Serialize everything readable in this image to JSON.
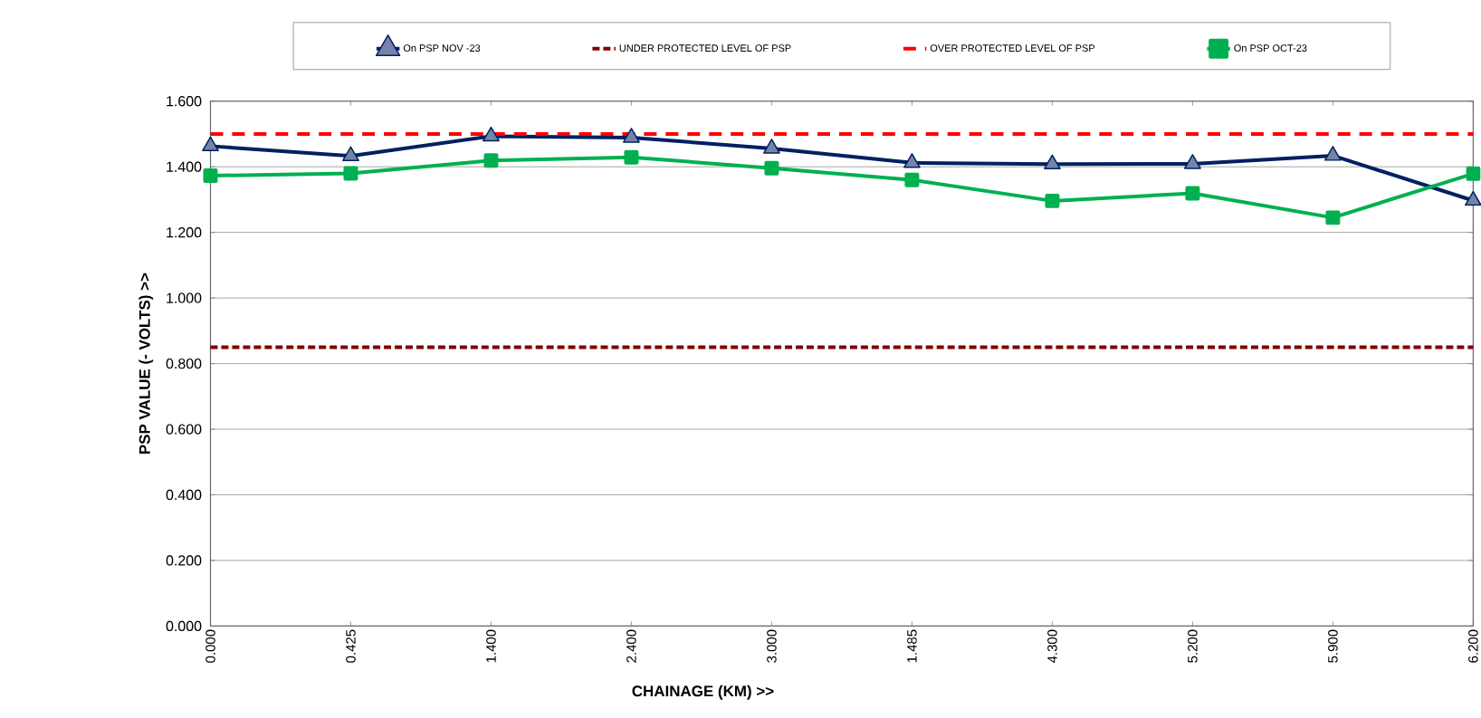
{
  "chart_data": {
    "type": "line",
    "xlabel": "CHAINAGE (KM) >>",
    "ylabel": "PSP  VALUE (- VOLTS) >>",
    "categories": [
      "0.000",
      "0.425",
      "1.400",
      "2.400",
      "3.000",
      "1.485",
      "4.300",
      "5.200",
      "5.900",
      "6.200"
    ],
    "series": [
      {
        "name": "On PSP NOV -23",
        "color": "#002060",
        "marker": "triangle",
        "line_style": "solid",
        "values": [
          1.463,
          1.433,
          1.493,
          1.489,
          1.456,
          1.412,
          1.408,
          1.409,
          1.434,
          1.297
        ]
      },
      {
        "name": "UNDER PROTECTED LEVEL OF PSP",
        "color": "#7f0000",
        "marker": "none",
        "line_style": "dotted",
        "values": [
          0.85,
          0.85,
          0.85,
          0.85,
          0.85,
          0.85,
          0.85,
          0.85,
          0.85,
          0.85
        ]
      },
      {
        "name": "OVER PROTECTED LEVEL OF PSP",
        "color": "#ff0000",
        "marker": "none",
        "line_style": "dashed",
        "values": [
          1.5,
          1.5,
          1.5,
          1.5,
          1.5,
          1.5,
          1.5,
          1.5,
          1.5,
          1.5
        ]
      },
      {
        "name": "On PSP OCT-23",
        "color": "#00b050",
        "marker": "square",
        "line_style": "solid",
        "values": [
          1.373,
          1.38,
          1.419,
          1.429,
          1.396,
          1.36,
          1.296,
          1.319,
          1.245,
          1.379
        ]
      }
    ],
    "ylim": [
      0,
      1.6
    ],
    "yticks": [
      {
        "value": 0,
        "label": "0.000"
      },
      {
        "value": 0.2,
        "label": "0.200"
      },
      {
        "value": 0.4,
        "label": "0.400"
      },
      {
        "value": 0.6,
        "label": "0.600"
      },
      {
        "value": 0.8,
        "label": "0.800"
      },
      {
        "value": 1.0,
        "label": "1.000"
      },
      {
        "value": 1.2,
        "label": "1.200"
      },
      {
        "value": 1.4,
        "label": "1.400"
      },
      {
        "value": 1.6,
        "label": "1.600"
      }
    ],
    "grid": "y",
    "legend": "top"
  }
}
